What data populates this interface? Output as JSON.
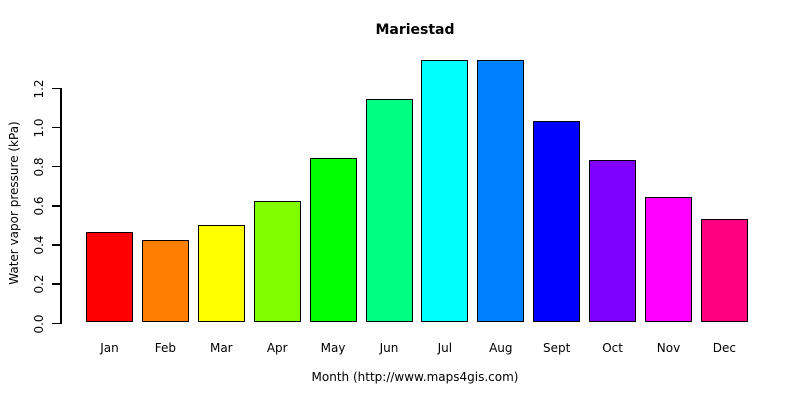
{
  "chart_data": {
    "type": "bar",
    "title": "Mariestad",
    "xlabel": "Month (http://www.maps4gis.com)",
    "ylabel": "Water vapor pressure (kPa)",
    "categories": [
      "Jan",
      "Feb",
      "Mar",
      "Apr",
      "May",
      "Jun",
      "Jul",
      "Aug",
      "Sept",
      "Oct",
      "Nov",
      "Dec"
    ],
    "values": [
      0.46,
      0.42,
      0.5,
      0.62,
      0.84,
      1.14,
      1.34,
      1.34,
      1.03,
      0.83,
      0.64,
      0.53
    ],
    "bar_colors": [
      "#FF0000",
      "#FF8000",
      "#FFFF00",
      "#80FF00",
      "#00FF00",
      "#00FF80",
      "#00FFFF",
      "#0080FF",
      "#0000FF",
      "#8000FF",
      "#FF00FF",
      "#FF0080"
    ],
    "ylim": [
      0,
      1.35
    ],
    "yticks": [
      "0.0",
      "0.2",
      "0.4",
      "0.6",
      "0.8",
      "1.0",
      "1.2"
    ],
    "grid": "off",
    "legend": "none",
    "axis_color": "#000000",
    "bar_border_color": "#000000",
    "background_color": "#FFFFFF"
  }
}
